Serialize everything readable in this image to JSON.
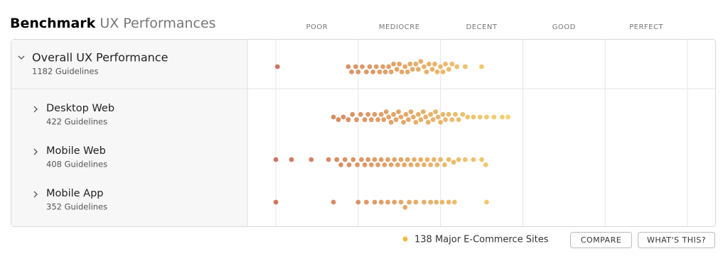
{
  "header": {
    "title_bold": "Benchmark",
    "title_rest": "UX Performances"
  },
  "scale": {
    "labels": [
      "POOR",
      "MEDIOCRE",
      "DECENT",
      "GOOD",
      "PERFECT"
    ],
    "xlim": [
      0,
      5
    ],
    "xticks": [
      0,
      1,
      2,
      3,
      4,
      5
    ]
  },
  "rows": [
    {
      "label": "Overall UX Performance",
      "sublabel": "1182 Guidelines",
      "values": [
        0.02,
        0.88,
        0.92,
        0.97,
        1.0,
        1.05,
        1.1,
        1.14,
        1.18,
        1.22,
        1.26,
        1.3,
        1.33,
        1.37,
        1.4,
        1.43,
        1.47,
        1.5,
        1.53,
        1.57,
        1.6,
        1.63,
        1.66,
        1.7,
        1.73,
        1.76,
        1.8,
        1.83,
        1.86,
        1.9,
        1.93,
        1.96,
        2.0,
        2.03,
        2.06,
        2.1,
        2.14,
        2.2,
        2.3,
        2.5
      ]
    },
    {
      "label": "Desktop Web",
      "sublabel": "422 Guidelines",
      "values": [
        0.7,
        0.76,
        0.82,
        0.88,
        0.93,
        0.98,
        1.03,
        1.08,
        1.12,
        1.16,
        1.2,
        1.24,
        1.28,
        1.31,
        1.34,
        1.37,
        1.4,
        1.43,
        1.46,
        1.49,
        1.52,
        1.55,
        1.58,
        1.61,
        1.64,
        1.67,
        1.7,
        1.73,
        1.76,
        1.79,
        1.82,
        1.85,
        1.88,
        1.91,
        1.94,
        1.97,
        2.0,
        2.03,
        2.06,
        2.1,
        2.14,
        2.18,
        2.22,
        2.27,
        2.33,
        2.4,
        2.48,
        2.56,
        2.65,
        2.75,
        2.82
      ]
    },
    {
      "label": "Mobile Web",
      "sublabel": "408 Guidelines",
      "values": [
        0.0,
        0.19,
        0.43,
        0.64,
        0.74,
        0.79,
        0.84,
        0.89,
        0.94,
        0.99,
        1.04,
        1.08,
        1.12,
        1.16,
        1.2,
        1.24,
        1.28,
        1.32,
        1.36,
        1.4,
        1.44,
        1.48,
        1.52,
        1.56,
        1.6,
        1.64,
        1.68,
        1.72,
        1.76,
        1.8,
        1.84,
        1.88,
        1.92,
        1.96,
        2.0,
        2.05,
        2.1,
        2.16,
        2.22,
        2.3,
        2.4,
        2.5,
        2.55
      ]
    },
    {
      "label": "Mobile App",
      "sublabel": "352 Guidelines",
      "values": [
        0.0,
        0.7,
        1.0,
        1.1,
        1.2,
        1.28,
        1.36,
        1.44,
        1.52,
        1.57,
        1.62,
        1.7,
        1.8,
        1.88,
        1.95,
        2.02,
        2.1,
        2.17,
        2.56
      ]
    }
  ],
  "footer": {
    "legend": "138 Major E-Commerce Sites",
    "buttons": [
      "COMPARE",
      "WHAT'S THIS?"
    ]
  }
}
